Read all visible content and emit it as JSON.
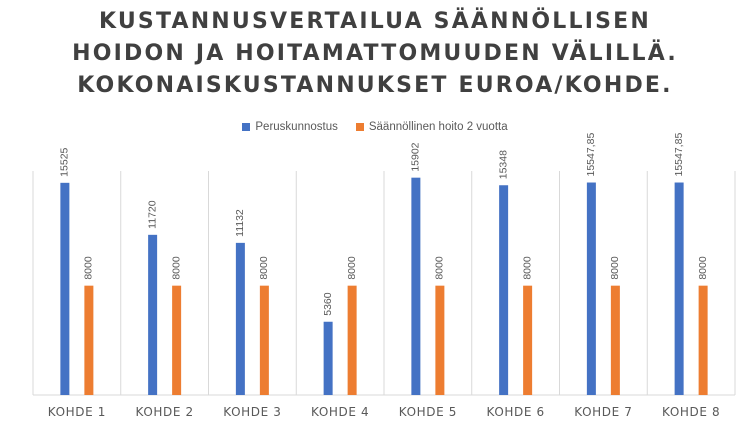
{
  "title_lines": [
    "KUSTANNUSVERTAILUA SÄÄNNÖLLISEN",
    "HOIDON JA HOITAMATTOMUUDEN VÄLILLÄ.",
    "KOKONAISKUSTANNUKSET EUROA/KOHDE."
  ],
  "colors": {
    "series1": "#4472C4",
    "series2": "#ED7D31",
    "grid": "#d9d9d9",
    "text": "#595959"
  },
  "chart_data": {
    "type": "bar",
    "title": "KUSTANNUSVERTAILUA SÄÄNNÖLLISEN HOIDON JA HOITAMATTOMUUDEN VÄLILLÄ. KOKONAISKUSTANNUKSET EUROA/KOHDE.",
    "categories": [
      "KOHDE 1",
      "KOHDE 2",
      "KOHDE 3",
      "KOHDE 4",
      "KOHDE 5",
      "KOHDE 6",
      "KOHDE 7",
      "KOHDE 8"
    ],
    "series": [
      {
        "name": "Peruskunnostus",
        "values": [
          15525,
          11720,
          11132,
          5360,
          15902,
          15348,
          15547.85,
          15547.85
        ],
        "labels": [
          "15525",
          "11720",
          "11132",
          "5360",
          "15902",
          "15348",
          "15547,85",
          "15547,85"
        ]
      },
      {
        "name": "Säännöllinen hoito 2 vuotta",
        "values": [
          8000,
          8000,
          8000,
          8000,
          8000,
          8000,
          8000,
          8000
        ],
        "labels": [
          "8000",
          "8000",
          "8000",
          "8000",
          "8000",
          "8000",
          "8000",
          "8000"
        ]
      }
    ],
    "ylim": [
      0,
      18000
    ],
    "xlabel": "",
    "ylabel": "",
    "legend": "top",
    "grid": "vertical category separators"
  }
}
